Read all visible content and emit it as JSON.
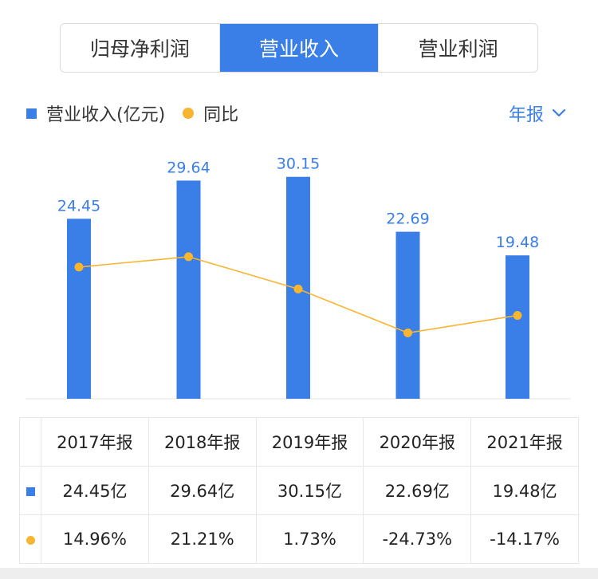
{
  "tabs": [
    {
      "label": "归母净利润",
      "active": false
    },
    {
      "label": "营业收入",
      "active": true
    },
    {
      "label": "营业利润",
      "active": false
    }
  ],
  "legend": {
    "bar_label": "营业收入(亿元)",
    "line_label": "同比"
  },
  "period_selector": {
    "label": "年报",
    "icon": "chevron-down-icon"
  },
  "colors": {
    "bar": "#3a7ee8",
    "line": "#f7b530",
    "positive": "#e04848",
    "negative": "#1aa66b",
    "label": "#3a7ee8"
  },
  "chart_data": {
    "type": "bar",
    "categories": [
      "2017年报",
      "2018年报",
      "2019年报",
      "2020年报",
      "2021年报"
    ],
    "series": [
      {
        "name": "营业收入(亿元)",
        "type": "bar",
        "values": [
          24.45,
          29.64,
          30.15,
          22.69,
          19.48
        ]
      },
      {
        "name": "同比",
        "type": "line",
        "values": [
          14.96,
          21.21,
          1.73,
          -24.73,
          -14.17
        ]
      }
    ],
    "bar_labels": [
      "24.45",
      "29.64",
      "30.15",
      "22.69",
      "19.48"
    ],
    "grid": false,
    "legend_position": "top-left"
  },
  "table": {
    "headers": [
      "2017年报",
      "2018年报",
      "2019年报",
      "2020年报",
      "2021年报"
    ],
    "revenue_row": [
      "24.45亿",
      "29.64亿",
      "30.15亿",
      "22.69亿",
      "19.48亿"
    ],
    "yoy_row": [
      "14.96%",
      "21.21%",
      "1.73%",
      "-24.73%",
      "-14.17%"
    ]
  }
}
